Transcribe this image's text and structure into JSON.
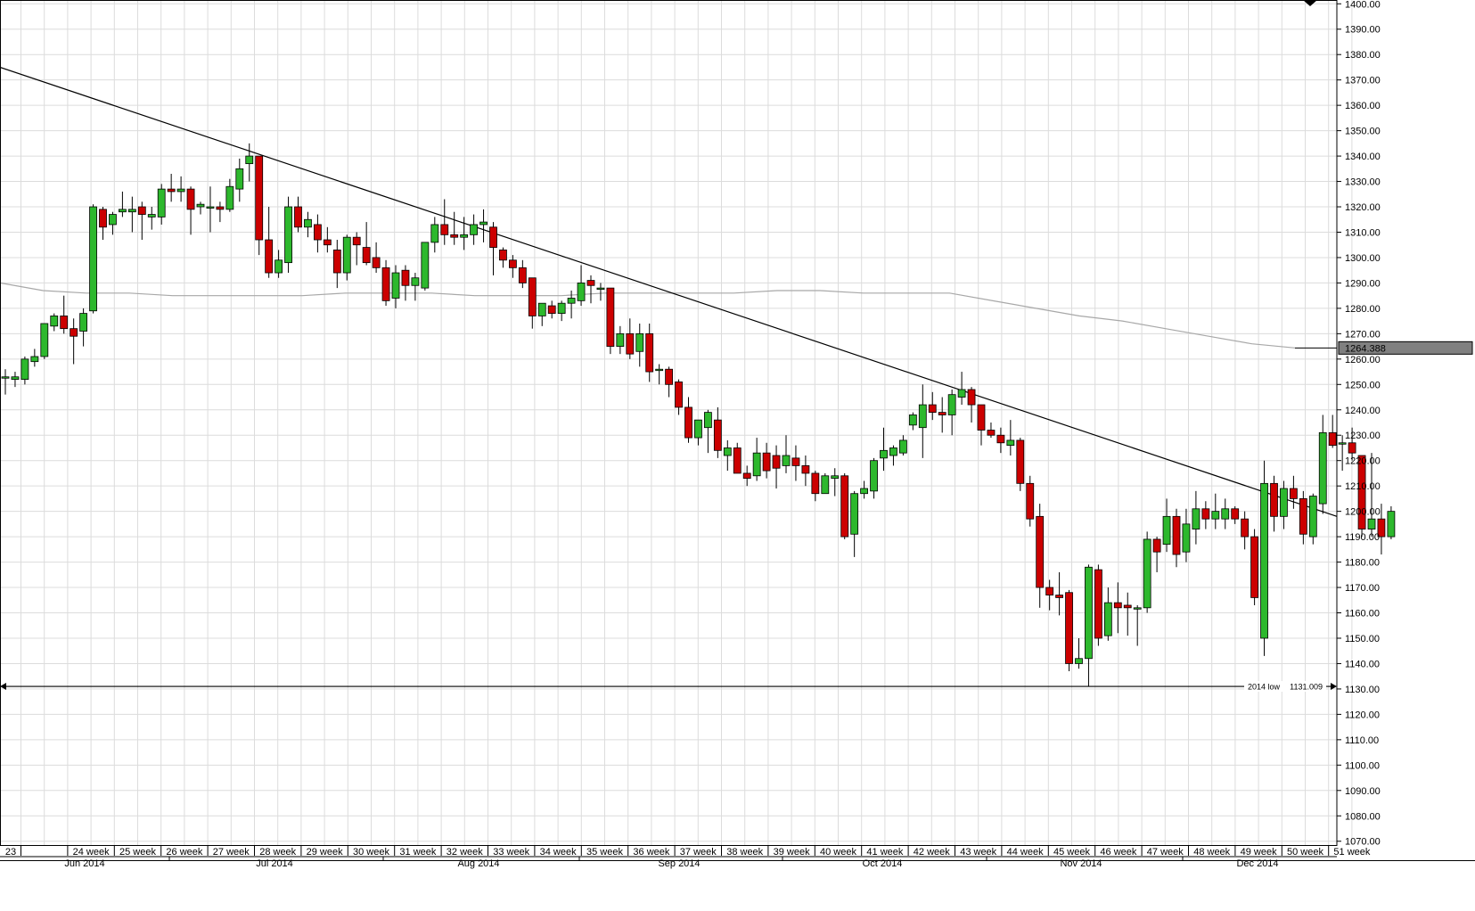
{
  "chart_data": {
    "type": "candlestick",
    "title": "",
    "xlabel": "",
    "ylabel": "",
    "ylim": [
      1070,
      1400
    ],
    "y_ticks": [
      1070.0,
      1080.0,
      1090.0,
      1100.0,
      1110.0,
      1120.0,
      1130.0,
      1140.0,
      1150.0,
      1160.0,
      1170.0,
      1180.0,
      1190.0,
      1200.0,
      1210.0,
      1220.0,
      1230.0,
      1240.0,
      1250.0,
      1260.0,
      1270.0,
      1280.0,
      1290.0,
      1300.0,
      1310.0,
      1320.0,
      1330.0,
      1340.0,
      1350.0,
      1360.0,
      1370.0,
      1380.0,
      1390.0,
      1400.0
    ],
    "y_tick_labels": [
      "1070.00",
      "1080.00",
      "1090.00",
      "1100.00",
      "1110.00",
      "1120.00",
      "1130.00",
      "1140.00",
      "1150.00",
      "1160.00",
      "1170.00",
      "1180.00",
      "1190.00",
      "1200.00",
      "1210.00",
      "1220.00",
      "1230.00",
      "1240.00",
      "1250.00",
      "1260.00",
      "1270.00",
      "1280.00",
      "1290.00",
      "1300.00",
      "1310.00",
      "1320.00",
      "1330.00",
      "1340.00",
      "1350.00",
      "1360.00",
      "1370.00",
      "1380.00",
      "1390.00",
      "1400.00"
    ],
    "week_labels": [
      "23",
      "24 week",
      "25 week",
      "26 week",
      "27 week",
      "28 week",
      "29 week",
      "30 week",
      "31 week",
      "32 week",
      "33 week",
      "34 week",
      "35 week",
      "36 week",
      "37 week",
      "38 week",
      "39 week",
      "40 week",
      "41 week",
      "42 week",
      "43 week",
      "44 week",
      "45 week",
      "46 week",
      "47 week",
      "48 week",
      "49 week",
      "50 week",
      "51 week"
    ],
    "month_labels": [
      "Jun 2014",
      "Jul 2014",
      "Aug 2014",
      "Sep 2014",
      "Oct 2014",
      "Nov 2014",
      "Dec 2014"
    ],
    "grid": true,
    "colors": {
      "up": "#2db82d",
      "down": "#cc0000",
      "grid": "#dcdcdc",
      "line": "#000000",
      "ma": "#a8a8a8",
      "current_price_box": "#808080"
    },
    "candles": [
      {
        "o": 1253,
        "h": 1256,
        "l": 1246,
        "c": 1253
      },
      {
        "o": 1252,
        "h": 1255,
        "l": 1249,
        "c": 1253
      },
      {
        "o": 1252,
        "h": 1261,
        "l": 1250,
        "c": 1260
      },
      {
        "o": 1259,
        "h": 1264,
        "l": 1257,
        "c": 1261
      },
      {
        "o": 1261,
        "h": 1274,
        "l": 1260,
        "c": 1274
      },
      {
        "o": 1273,
        "h": 1278,
        "l": 1271,
        "c": 1277
      },
      {
        "o": 1277,
        "h": 1285,
        "l": 1270,
        "c": 1272
      },
      {
        "o": 1272,
        "h": 1276,
        "l": 1258,
        "c": 1269
      },
      {
        "o": 1271,
        "h": 1280,
        "l": 1265,
        "c": 1278
      },
      {
        "o": 1279,
        "h": 1321,
        "l": 1278,
        "c": 1320
      },
      {
        "o": 1319,
        "h": 1320,
        "l": 1307,
        "c": 1312
      },
      {
        "o": 1313,
        "h": 1318,
        "l": 1309,
        "c": 1317
      },
      {
        "o": 1318,
        "h": 1326,
        "l": 1316,
        "c": 1319
      },
      {
        "o": 1318,
        "h": 1324,
        "l": 1310,
        "c": 1319
      },
      {
        "o": 1320,
        "h": 1322,
        "l": 1307,
        "c": 1317
      },
      {
        "o": 1316,
        "h": 1320,
        "l": 1311,
        "c": 1317
      },
      {
        "o": 1316,
        "h": 1329,
        "l": 1313,
        "c": 1327
      },
      {
        "o": 1327,
        "h": 1333,
        "l": 1322,
        "c": 1326
      },
      {
        "o": 1326,
        "h": 1332,
        "l": 1322,
        "c": 1327
      },
      {
        "o": 1327,
        "h": 1328,
        "l": 1309,
        "c": 1319
      },
      {
        "o": 1320,
        "h": 1322,
        "l": 1317,
        "c": 1321
      },
      {
        "o": 1320,
        "h": 1328,
        "l": 1310,
        "c": 1320
      },
      {
        "o": 1320,
        "h": 1322,
        "l": 1314,
        "c": 1319
      },
      {
        "o": 1319,
        "h": 1331,
        "l": 1318,
        "c": 1328
      },
      {
        "o": 1327,
        "h": 1339,
        "l": 1322,
        "c": 1335
      },
      {
        "o": 1337,
        "h": 1345,
        "l": 1330,
        "c": 1340
      },
      {
        "o": 1340,
        "h": 1340,
        "l": 1301,
        "c": 1307
      },
      {
        "o": 1307,
        "h": 1320,
        "l": 1292,
        "c": 1294
      },
      {
        "o": 1294,
        "h": 1303,
        "l": 1292,
        "c": 1299
      },
      {
        "o": 1298,
        "h": 1324,
        "l": 1294,
        "c": 1320
      },
      {
        "o": 1320,
        "h": 1324,
        "l": 1310,
        "c": 1312
      },
      {
        "o": 1312,
        "h": 1318,
        "l": 1308,
        "c": 1315
      },
      {
        "o": 1313,
        "h": 1317,
        "l": 1302,
        "c": 1307
      },
      {
        "o": 1307,
        "h": 1312,
        "l": 1302,
        "c": 1305
      },
      {
        "o": 1303,
        "h": 1307,
        "l": 1288,
        "c": 1294
      },
      {
        "o": 1294,
        "h": 1309,
        "l": 1291,
        "c": 1308
      },
      {
        "o": 1308,
        "h": 1310,
        "l": 1297,
        "c": 1305
      },
      {
        "o": 1304,
        "h": 1314,
        "l": 1297,
        "c": 1298
      },
      {
        "o": 1300,
        "h": 1306,
        "l": 1294,
        "c": 1296
      },
      {
        "o": 1296,
        "h": 1299,
        "l": 1281,
        "c": 1283
      },
      {
        "o": 1284,
        "h": 1297,
        "l": 1280,
        "c": 1294
      },
      {
        "o": 1295,
        "h": 1297,
        "l": 1283,
        "c": 1289
      },
      {
        "o": 1289,
        "h": 1294,
        "l": 1283,
        "c": 1292
      },
      {
        "o": 1288,
        "h": 1306,
        "l": 1287,
        "c": 1306
      },
      {
        "o": 1306,
        "h": 1316,
        "l": 1302,
        "c": 1313
      },
      {
        "o": 1313,
        "h": 1323,
        "l": 1305,
        "c": 1309
      },
      {
        "o": 1309,
        "h": 1318,
        "l": 1305,
        "c": 1308
      },
      {
        "o": 1308,
        "h": 1316,
        "l": 1303,
        "c": 1309
      },
      {
        "o": 1309,
        "h": 1317,
        "l": 1305,
        "c": 1313
      },
      {
        "o": 1313,
        "h": 1319,
        "l": 1306,
        "c": 1314
      },
      {
        "o": 1312,
        "h": 1314,
        "l": 1293,
        "c": 1304
      },
      {
        "o": 1303,
        "h": 1304,
        "l": 1296,
        "c": 1299
      },
      {
        "o": 1299,
        "h": 1301,
        "l": 1292,
        "c": 1296
      },
      {
        "o": 1296,
        "h": 1299,
        "l": 1288,
        "c": 1290
      },
      {
        "o": 1292,
        "h": 1292,
        "l": 1272,
        "c": 1277
      },
      {
        "o": 1277,
        "h": 1282,
        "l": 1273,
        "c": 1282
      },
      {
        "o": 1281,
        "h": 1283,
        "l": 1276,
        "c": 1278
      },
      {
        "o": 1278,
        "h": 1283,
        "l": 1275,
        "c": 1282
      },
      {
        "o": 1282,
        "h": 1287,
        "l": 1276,
        "c": 1284
      },
      {
        "o": 1283,
        "h": 1297,
        "l": 1281,
        "c": 1290
      },
      {
        "o": 1291,
        "h": 1293,
        "l": 1282,
        "c": 1289
      },
      {
        "o": 1288,
        "h": 1290,
        "l": 1283,
        "c": 1288
      },
      {
        "o": 1288,
        "h": 1288,
        "l": 1262,
        "c": 1265
      },
      {
        "o": 1265,
        "h": 1273,
        "l": 1262,
        "c": 1270
      },
      {
        "o": 1270,
        "h": 1276,
        "l": 1260,
        "c": 1262
      },
      {
        "o": 1263,
        "h": 1274,
        "l": 1257,
        "c": 1270
      },
      {
        "o": 1270,
        "h": 1274,
        "l": 1251,
        "c": 1255
      },
      {
        "o": 1256,
        "h": 1258,
        "l": 1250,
        "c": 1256
      },
      {
        "o": 1256,
        "h": 1257,
        "l": 1245,
        "c": 1250
      },
      {
        "o": 1251,
        "h": 1252,
        "l": 1238,
        "c": 1241
      },
      {
        "o": 1241,
        "h": 1245,
        "l": 1227,
        "c": 1229
      },
      {
        "o": 1229,
        "h": 1236,
        "l": 1226,
        "c": 1236
      },
      {
        "o": 1233,
        "h": 1240,
        "l": 1223,
        "c": 1239
      },
      {
        "o": 1236,
        "h": 1241,
        "l": 1221,
        "c": 1224
      },
      {
        "o": 1222,
        "h": 1228,
        "l": 1216,
        "c": 1225
      },
      {
        "o": 1225,
        "h": 1227,
        "l": 1215,
        "c": 1215
      },
      {
        "o": 1215,
        "h": 1218,
        "l": 1210,
        "c": 1213
      },
      {
        "o": 1214,
        "h": 1229,
        "l": 1212,
        "c": 1223
      },
      {
        "o": 1223,
        "h": 1227,
        "l": 1213,
        "c": 1216
      },
      {
        "o": 1222,
        "h": 1226,
        "l": 1209,
        "c": 1217
      },
      {
        "o": 1218,
        "h": 1230,
        "l": 1215,
        "c": 1222
      },
      {
        "o": 1221,
        "h": 1226,
        "l": 1212,
        "c": 1218
      },
      {
        "o": 1218,
        "h": 1222,
        "l": 1210,
        "c": 1215
      },
      {
        "o": 1215,
        "h": 1216,
        "l": 1204,
        "c": 1207
      },
      {
        "o": 1207,
        "h": 1215,
        "l": 1207,
        "c": 1214
      },
      {
        "o": 1213,
        "h": 1217,
        "l": 1206,
        "c": 1214
      },
      {
        "o": 1214,
        "h": 1215,
        "l": 1189,
        "c": 1190
      },
      {
        "o": 1191,
        "h": 1208,
        "l": 1182,
        "c": 1207
      },
      {
        "o": 1207,
        "h": 1212,
        "l": 1205,
        "c": 1209
      },
      {
        "o": 1208,
        "h": 1221,
        "l": 1205,
        "c": 1220
      },
      {
        "o": 1221,
        "h": 1233,
        "l": 1216,
        "c": 1224
      },
      {
        "o": 1222,
        "h": 1226,
        "l": 1218,
        "c": 1225
      },
      {
        "o": 1223,
        "h": 1230,
        "l": 1222,
        "c": 1228
      },
      {
        "o": 1234,
        "h": 1239,
        "l": 1232,
        "c": 1238
      },
      {
        "o": 1233,
        "h": 1250,
        "l": 1221,
        "c": 1242
      },
      {
        "o": 1242,
        "h": 1247,
        "l": 1236,
        "c": 1239
      },
      {
        "o": 1239,
        "h": 1245,
        "l": 1231,
        "c": 1238
      },
      {
        "o": 1238,
        "h": 1248,
        "l": 1230,
        "c": 1246
      },
      {
        "o": 1245,
        "h": 1255,
        "l": 1242,
        "c": 1248
      },
      {
        "o": 1248,
        "h": 1249,
        "l": 1235,
        "c": 1242
      },
      {
        "o": 1242,
        "h": 1242,
        "l": 1226,
        "c": 1232
      },
      {
        "o": 1232,
        "h": 1235,
        "l": 1229,
        "c": 1230
      },
      {
        "o": 1230,
        "h": 1233,
        "l": 1223,
        "c": 1227
      },
      {
        "o": 1226,
        "h": 1236,
        "l": 1222,
        "c": 1228
      },
      {
        "o": 1228,
        "h": 1229,
        "l": 1208,
        "c": 1211
      },
      {
        "o": 1211,
        "h": 1214,
        "l": 1194,
        "c": 1197
      },
      {
        "o": 1198,
        "h": 1203,
        "l": 1162,
        "c": 1170
      },
      {
        "o": 1170,
        "h": 1173,
        "l": 1161,
        "c": 1167
      },
      {
        "o": 1167,
        "h": 1176,
        "l": 1159,
        "c": 1166
      },
      {
        "o": 1168,
        "h": 1169,
        "l": 1137,
        "c": 1140
      },
      {
        "o": 1140,
        "h": 1150,
        "l": 1138,
        "c": 1142
      },
      {
        "o": 1142,
        "h": 1179,
        "l": 1131,
        "c": 1178
      },
      {
        "o": 1177,
        "h": 1179,
        "l": 1147,
        "c": 1150
      },
      {
        "o": 1151,
        "h": 1170,
        "l": 1149,
        "c": 1164
      },
      {
        "o": 1164,
        "h": 1172,
        "l": 1152,
        "c": 1162
      },
      {
        "o": 1163,
        "h": 1168,
        "l": 1151,
        "c": 1162
      },
      {
        "o": 1162,
        "h": 1163,
        "l": 1147,
        "c": 1162
      },
      {
        "o": 1162,
        "h": 1192,
        "l": 1160,
        "c": 1189
      },
      {
        "o": 1189,
        "h": 1190,
        "l": 1176,
        "c": 1184
      },
      {
        "o": 1187,
        "h": 1205,
        "l": 1184,
        "c": 1198
      },
      {
        "o": 1198,
        "h": 1201,
        "l": 1178,
        "c": 1183
      },
      {
        "o": 1184,
        "h": 1201,
        "l": 1180,
        "c": 1195
      },
      {
        "o": 1193,
        "h": 1208,
        "l": 1187,
        "c": 1201
      },
      {
        "o": 1201,
        "h": 1204,
        "l": 1193,
        "c": 1197
      },
      {
        "o": 1197,
        "h": 1207,
        "l": 1193,
        "c": 1200
      },
      {
        "o": 1197,
        "h": 1205,
        "l": 1193,
        "c": 1201
      },
      {
        "o": 1201,
        "h": 1202,
        "l": 1195,
        "c": 1197
      },
      {
        "o": 1197,
        "h": 1200,
        "l": 1185,
        "c": 1190
      },
      {
        "o": 1190,
        "h": 1193,
        "l": 1163,
        "c": 1166
      },
      {
        "o": 1150,
        "h": 1220,
        "l": 1143,
        "c": 1211
      },
      {
        "o": 1211,
        "h": 1214,
        "l": 1192,
        "c": 1198
      },
      {
        "o": 1198,
        "h": 1212,
        "l": 1193,
        "c": 1209
      },
      {
        "o": 1209,
        "h": 1214,
        "l": 1201,
        "c": 1205
      },
      {
        "o": 1205,
        "h": 1208,
        "l": 1187,
        "c": 1191
      },
      {
        "o": 1190,
        "h": 1207,
        "l": 1187,
        "c": 1206
      },
      {
        "o": 1203,
        "h": 1238,
        "l": 1199,
        "c": 1231
      },
      {
        "o": 1231,
        "h": 1238,
        "l": 1225,
        "c": 1226
      },
      {
        "o": 1227,
        "h": 1230,
        "l": 1216,
        "c": 1227
      },
      {
        "o": 1227,
        "h": 1233,
        "l": 1220,
        "c": 1223
      },
      {
        "o": 1222,
        "h": 1222,
        "l": 1190,
        "c": 1193
      },
      {
        "o": 1193,
        "h": 1223,
        "l": 1190,
        "c": 1197
      },
      {
        "o": 1197,
        "h": 1203,
        "l": 1183,
        "c": 1190
      },
      {
        "o": 1190,
        "h": 1202,
        "l": 1189,
        "c": 1200
      }
    ],
    "trendline": {
      "start": 1375,
      "end": 1198
    },
    "moving_average": [
      1290,
      1287,
      1286,
      1286,
      1285,
      1285,
      1285,
      1285,
      1286,
      1286,
      1286,
      1285,
      1285,
      1285,
      1286,
      1286,
      1286,
      1286,
      1287,
      1287,
      1286,
      1286,
      1286,
      1283,
      1280,
      1277,
      1275,
      1272,
      1269,
      1266,
      1264.388
    ],
    "support_line": {
      "value": 1131.009,
      "label": "2014 low",
      "value_label": "1131.009"
    },
    "current_price_label": "1264.388"
  }
}
